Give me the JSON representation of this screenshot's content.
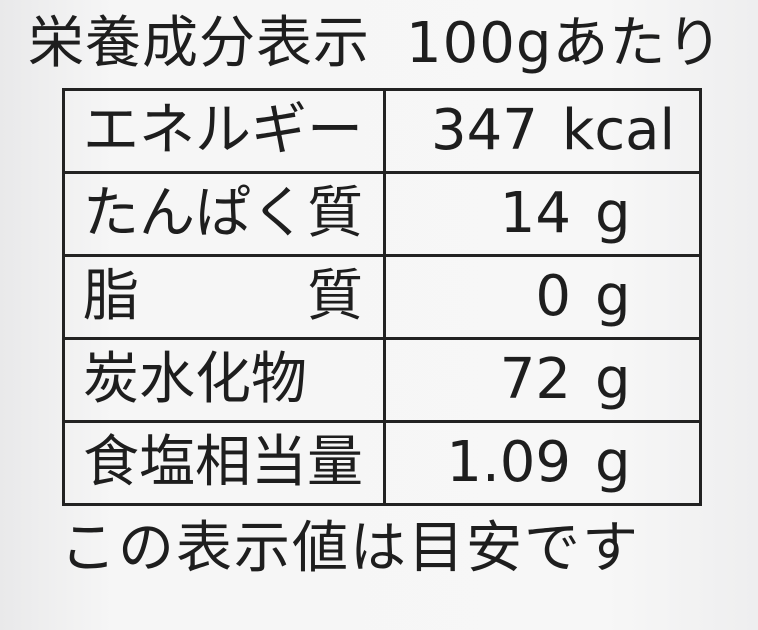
{
  "title": {
    "heading": "栄養成分表示",
    "per": "100gあたり"
  },
  "rows": [
    {
      "label": "エネルギー",
      "value": "347",
      "unit": "kcal"
    },
    {
      "label": "たんぱく質",
      "value": "14",
      "unit": "g"
    },
    {
      "label": "脂　　　質",
      "value": "0",
      "unit": "g"
    },
    {
      "label": "炭水化物",
      "value": "72",
      "unit": "g"
    },
    {
      "label": "食塩相当量",
      "value": "1.09",
      "unit": "g"
    }
  ],
  "footer": "この表示値は目安です"
}
